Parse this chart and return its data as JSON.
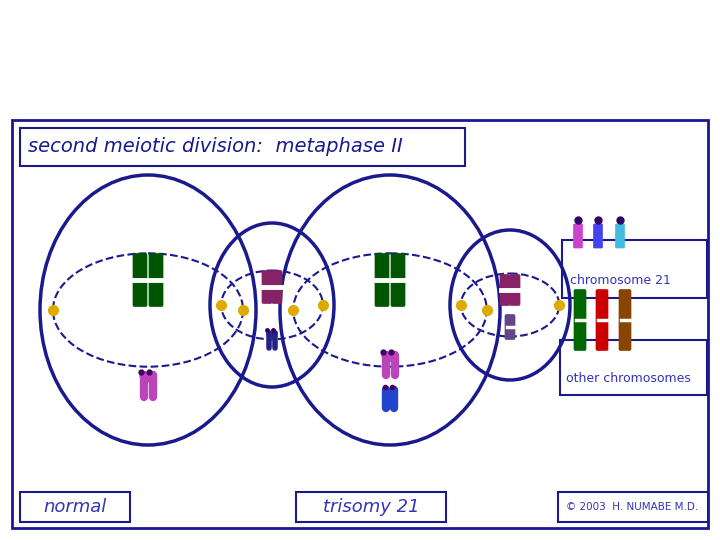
{
  "title": "second meiotic division:  metaphase II",
  "label_normal": "normal",
  "label_trisomy": "trisomy 21",
  "label_chr21": "chromosome 21",
  "label_other": "other chromosomes",
  "copyright": "© 2003  H. NUMABE M.D.",
  "bg_color": "#ffffff",
  "border_color": "#1a1a8e",
  "title_color": "#1a1a8e",
  "label_color": "#3333bb",
  "chr21_colors": [
    "#cc44cc",
    "#4444ee",
    "#44bbdd"
  ],
  "other_chr_colors": [
    "#006600",
    "#cc0000",
    "#884400"
  ],
  "cell_border": "#1a1a8e",
  "spindle_color": "#1a1a8e",
  "centriole_color": "#ddaa00",
  "chr_green": "#005500",
  "chr_purple": "#bb44bb",
  "chr_blue": "#2244cc",
  "chr_darkred": "#882244"
}
